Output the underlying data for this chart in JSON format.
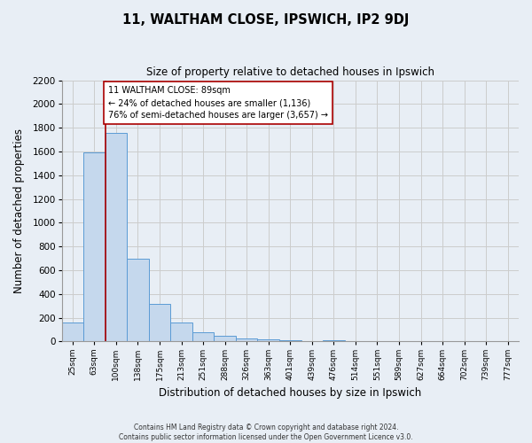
{
  "title": "11, WALTHAM CLOSE, IPSWICH, IP2 9DJ",
  "subtitle": "Size of property relative to detached houses in Ipswich",
  "xlabel": "Distribution of detached houses by size in Ipswich",
  "ylabel": "Number of detached properties",
  "bin_labels": [
    "25sqm",
    "63sqm",
    "100sqm",
    "138sqm",
    "175sqm",
    "213sqm",
    "251sqm",
    "288sqm",
    "326sqm",
    "363sqm",
    "401sqm",
    "439sqm",
    "476sqm",
    "514sqm",
    "551sqm",
    "589sqm",
    "627sqm",
    "664sqm",
    "702sqm",
    "739sqm",
    "777sqm"
  ],
  "bar_values": [
    160,
    1590,
    1760,
    700,
    315,
    160,
    80,
    45,
    25,
    18,
    13,
    0,
    13,
    0,
    0,
    0,
    0,
    0,
    0,
    0,
    0
  ],
  "bar_color": "#c5d8ed",
  "bar_edge_color": "#5b9bd5",
  "red_line_color": "#aa0000",
  "annotation_text": "11 WALTHAM CLOSE: 89sqm\n← 24% of detached houses are smaller (1,136)\n76% of semi-detached houses are larger (3,657) →",
  "annotation_box_color": "#ffffff",
  "annotation_box_edge_color": "#aa0000",
  "ylim": [
    0,
    2200
  ],
  "yticks": [
    0,
    200,
    400,
    600,
    800,
    1000,
    1200,
    1400,
    1600,
    1800,
    2000,
    2200
  ],
  "grid_color": "#cccccc",
  "background_color": "#e8eef5",
  "plot_bg_color": "#e8eef5",
  "footer_line1": "Contains HM Land Registry data © Crown copyright and database right 2024.",
  "footer_line2": "Contains public sector information licensed under the Open Government Licence v3.0."
}
